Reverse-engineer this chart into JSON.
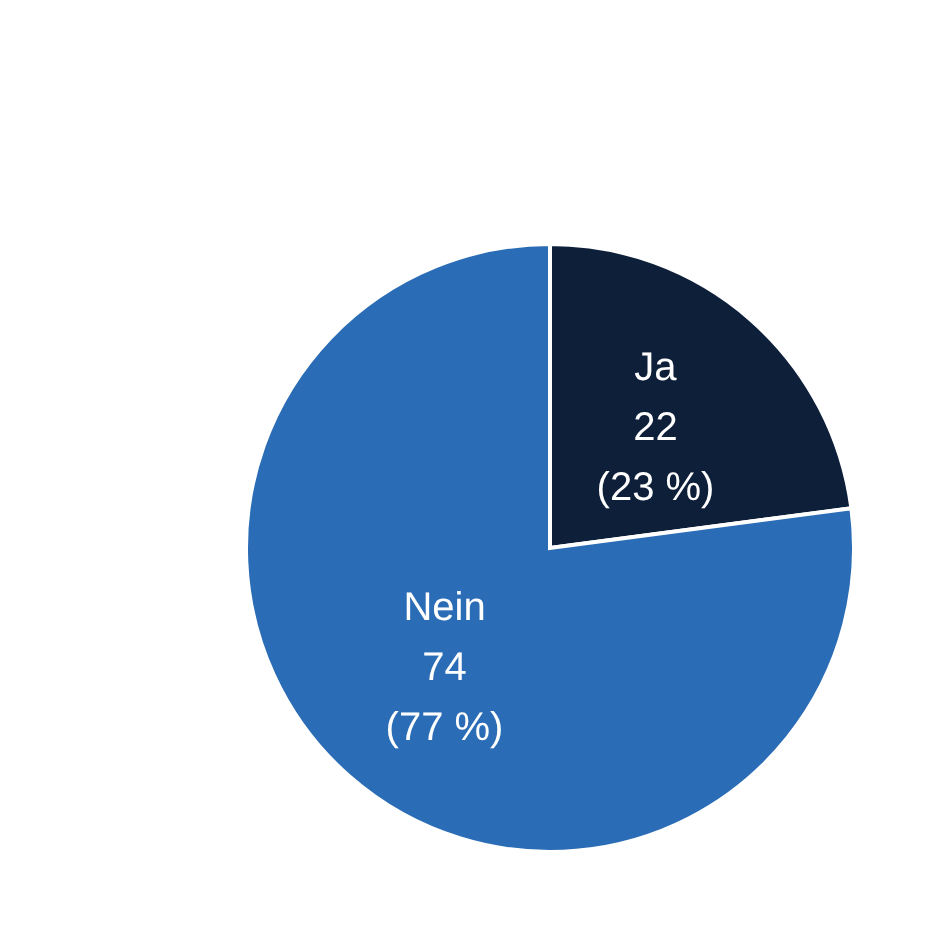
{
  "chart_data": {
    "type": "pie",
    "categories": [
      "Ja",
      "Nein"
    ],
    "values": [
      22,
      74
    ],
    "colors": [
      "#0e1f3a",
      "#2a6cb5"
    ],
    "value_labels": [
      "22\n(23 %)",
      "74\n(77 %)"
    ]
  }
}
